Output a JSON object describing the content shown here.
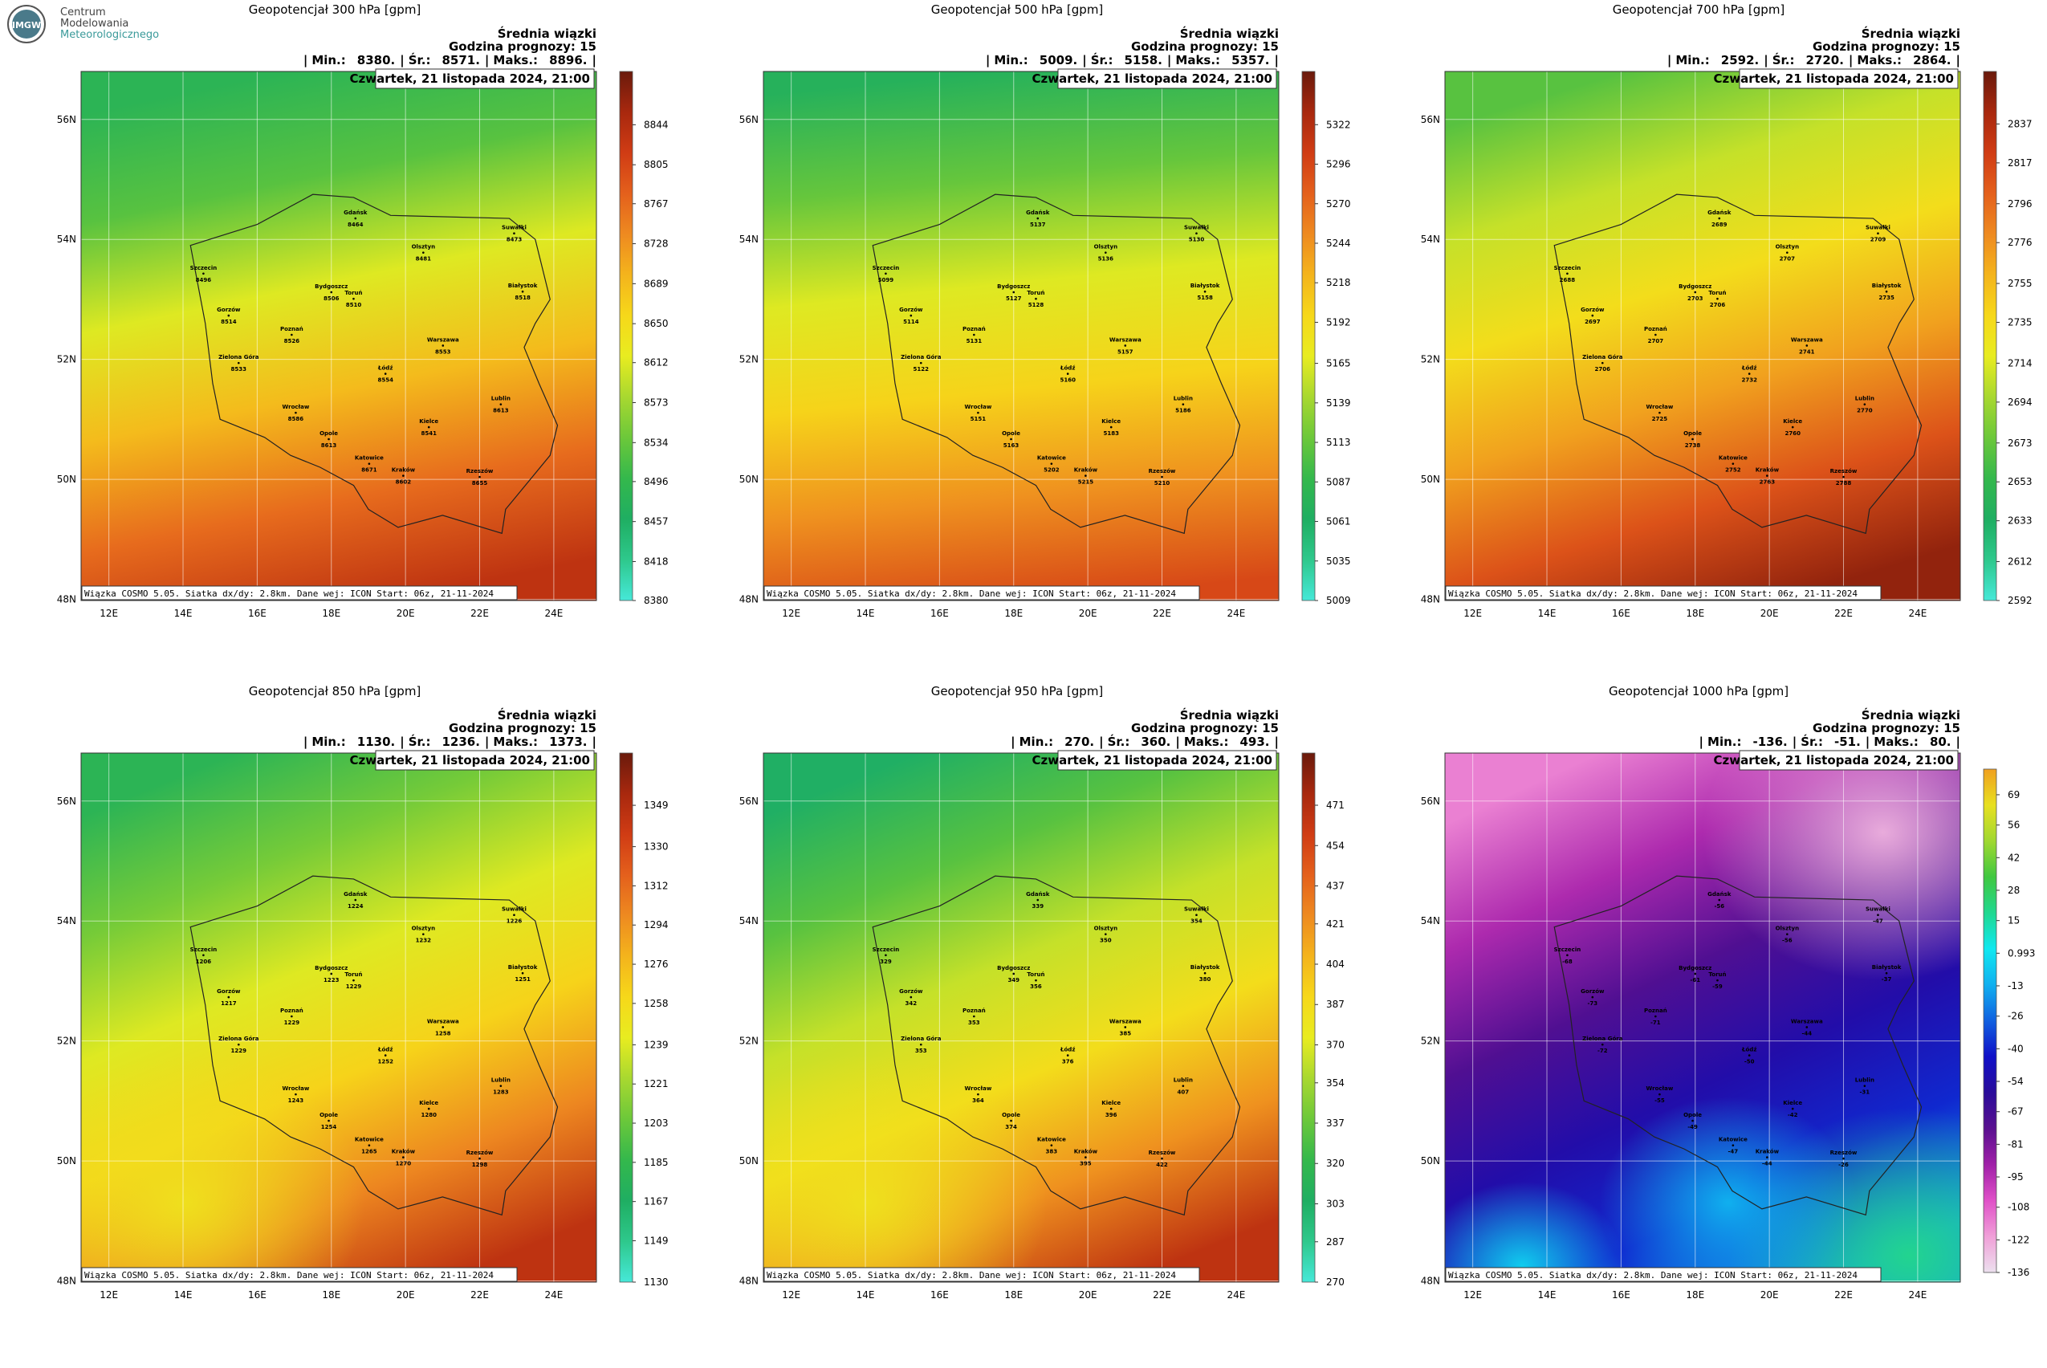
{
  "logo": {
    "badge": "IMGW",
    "lines": [
      "Centrum",
      "Modelowania",
      "Meteorologicznego"
    ]
  },
  "ensemble_label": "Średnia wiązki",
  "forecast_hour_label": "Godzina prognozy: 15",
  "date_label": "Czwartek, 21 listopada 2024, 21:00",
  "footer": "Wiązka COSMO 5.05. Siatka dx/dy: 2.8km. Dane wej: ICON Start: 06z, 21-11-2024",
  "stats_separator": "|",
  "stats_labels": [
    "Min.:",
    "Śr.:",
    "Maks.:"
  ],
  "xlim": [
    11.25,
    25.15
  ],
  "ylim": [
    47.98,
    56.8
  ],
  "xticks": [
    {
      "value": 12,
      "label": "12E"
    },
    {
      "value": 14,
      "label": "14E"
    },
    {
      "value": 16,
      "label": "16E"
    },
    {
      "value": 18,
      "label": "18E"
    },
    {
      "value": 20,
      "label": "20E"
    },
    {
      "value": 22,
      "label": "22E"
    },
    {
      "value": 24,
      "label": "24E"
    }
  ],
  "yticks": [
    {
      "value": 48,
      "label": "48N"
    },
    {
      "value": 50,
      "label": "50N"
    },
    {
      "value": 52,
      "label": "52N"
    },
    {
      "value": 54,
      "label": "54N"
    },
    {
      "value": 56,
      "label": "56N"
    }
  ],
  "grid": true,
  "cities": [
    "Gdańsk",
    "Olsztyn",
    "Suwałki",
    "Szczecin",
    "Bydgoszcz",
    "Toruń",
    "Białystok",
    "Gorzów",
    "Poznań",
    "Warszawa",
    "Zielona Góra",
    "Łódź",
    "Lublin",
    "Wrocław",
    "Opole",
    "Kielce",
    "Katowice",
    "Kraków",
    "Rzeszów"
  ],
  "colormaps": {
    "warm": [
      "#46e8d8",
      "#2ec88c",
      "#1fae62",
      "#34b84c",
      "#6cc83a",
      "#a8d830",
      "#e8ec20",
      "#f6d81a",
      "#f4b41c",
      "#ee8a20",
      "#e4601c",
      "#d03c14",
      "#a8280e",
      "#6a1a0c"
    ],
    "cold": [
      "#ece0ee",
      "#f0a0d8",
      "#e050c8",
      "#a020a8",
      "#5a1090",
      "#2a0c9a",
      "#1010c8",
      "#1060e0",
      "#10b0f0",
      "#10e8f0",
      "#20d890",
      "#40c840",
      "#a0d830",
      "#e8e020",
      "#f0a020"
    ]
  },
  "panels": [
    {
      "title": "Geopotencjał 300 hPa [gpm]",
      "colormap": "warm",
      "stats": [
        {
          "value": 8380,
          "label": "8380."
        },
        {
          "value": 8571,
          "label": "8571."
        },
        {
          "value": 8896,
          "label": "8896."
        }
      ],
      "clim": [
        8380,
        8896
      ],
      "cticks": [
        8844,
        8805,
        8767,
        8728,
        8689,
        8650,
        8612,
        8573,
        8534,
        8496,
        8457,
        8418,
        8380
      ],
      "city_values": [
        8464,
        8481,
        8473,
        8496,
        8506,
        8510,
        8518,
        8514,
        8526,
        8553,
        8533,
        8554,
        8613,
        8586,
        8613,
        8541,
        8671,
        8602,
        8655
      ]
    },
    {
      "title": "Geopotencjał 500 hPa [gpm]",
      "colormap": "warm",
      "stats": [
        {
          "value": 5009,
          "label": "5009."
        },
        {
          "value": 5158,
          "label": "5158."
        },
        {
          "value": 5357,
          "label": "5357."
        }
      ],
      "clim": [
        5009,
        5357
      ],
      "cticks": [
        5322,
        5296,
        5270,
        5244,
        5218,
        5192,
        5165,
        5139,
        5113,
        5087,
        5061,
        5035,
        5009
      ],
      "city_values": [
        5137,
        5136,
        5130,
        5099,
        5127,
        5128,
        5158,
        5114,
        5131,
        5157,
        5122,
        5160,
        5186,
        5151,
        5163,
        5183,
        5202,
        5215,
        5210
      ]
    },
    {
      "title": "Geopotencjał 700 hPa [gpm]",
      "colormap": "warm",
      "stats": [
        {
          "value": 2592,
          "label": "2592."
        },
        {
          "value": 2720,
          "label": "2720."
        },
        {
          "value": 2864,
          "label": "2864."
        }
      ],
      "clim": [
        2592,
        2864
      ],
      "cticks": [
        2837,
        2817,
        2796,
        2776,
        2755,
        2735,
        2714,
        2694,
        2673,
        2653,
        2633,
        2612,
        2592
      ],
      "city_values": [
        2689,
        2707,
        2709,
        2688,
        2703,
        2706,
        2735,
        2697,
        2707,
        2741,
        2706,
        2732,
        2770,
        2725,
        2738,
        2760,
        2752,
        2763,
        2788
      ]
    },
    {
      "title": "Geopotencjał 850 hPa [gpm]",
      "colormap": "warm",
      "stats": [
        {
          "value": 1130,
          "label": "1130."
        },
        {
          "value": 1236,
          "label": "1236."
        },
        {
          "value": 1373,
          "label": "1373."
        }
      ],
      "clim": [
        1130,
        1373
      ],
      "cticks": [
        1349,
        1330,
        1312,
        1294,
        1276,
        1258,
        1239,
        1221,
        1203,
        1185,
        1167,
        1149,
        1130
      ],
      "city_values": [
        1224,
        1232,
        1226,
        1206,
        1223,
        1229,
        1251,
        1217,
        1229,
        1258,
        1229,
        1252,
        1283,
        1243,
        1254,
        1280,
        1265,
        1270,
        1298
      ]
    },
    {
      "title": "Geopotencjał 950 hPa [gpm]",
      "colormap": "warm",
      "stats": [
        {
          "value": 270,
          "label": "270."
        },
        {
          "value": 360,
          "label": "360."
        },
        {
          "value": 493,
          "label": "493."
        }
      ],
      "clim": [
        270,
        493
      ],
      "cticks": [
        471,
        454,
        437,
        421,
        404,
        387,
        370,
        354,
        337,
        320,
        303,
        287,
        270
      ],
      "city_values": [
        339,
        350,
        354,
        329,
        349,
        356,
        380,
        342,
        353,
        385,
        353,
        376,
        407,
        364,
        374,
        396,
        383,
        395,
        422
      ]
    },
    {
      "title": "Geopotencjał 1000 hPa [gpm]",
      "colormap": "cold",
      "stats": [
        {
          "value": -136,
          "label": "-136."
        },
        {
          "value": -51,
          "label": "-51."
        },
        {
          "value": 80,
          "label": "80."
        }
      ],
      "clim": [
        -136,
        80
      ],
      "cticks": [
        69,
        56,
        42,
        28,
        15,
        0.993,
        -13,
        -26,
        -40,
        -54,
        -67,
        -81,
        -95,
        -108,
        -122,
        -136
      ],
      "city_values": [
        -56,
        -56,
        -47,
        -68,
        -61,
        -59,
        -37,
        -73,
        -71,
        -44,
        -72,
        -50,
        -31,
        -55,
        -49,
        -42,
        -47,
        -44,
        -26
      ]
    }
  ]
}
